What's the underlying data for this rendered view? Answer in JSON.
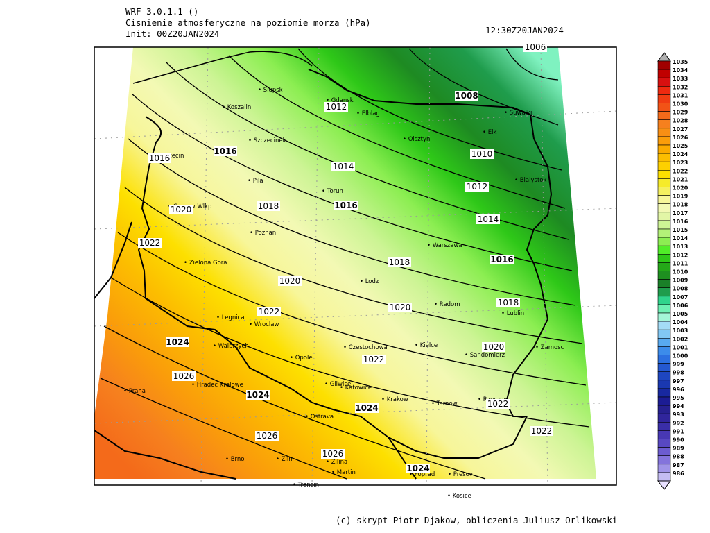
{
  "header": {
    "model": "WRF 3.0.1.1 ()",
    "field": "Cisnienie atmosferyczne na poziomie morza (hPa)",
    "init": "Init: 00Z20JAN2024",
    "valid": "12:30Z20JAN2024"
  },
  "cities": [
    {
      "name": "Slupsk"
    },
    {
      "name": "Gdansk"
    },
    {
      "name": "Koszalin"
    },
    {
      "name": "Elblag"
    },
    {
      "name": "Olsztyn"
    },
    {
      "name": "Suwalki"
    },
    {
      "name": "Elk"
    },
    {
      "name": "Szczecinek"
    },
    {
      "name": "Szczecin"
    },
    {
      "name": "Bialystok"
    },
    {
      "name": "Pila"
    },
    {
      "name": "Torun"
    },
    {
      "name": "Gorzow Wlkp"
    },
    {
      "name": "Poznan"
    },
    {
      "name": "Warszawa"
    },
    {
      "name": "Zielona Gora"
    },
    {
      "name": "Lodz"
    },
    {
      "name": "Radom"
    },
    {
      "name": "Lublin"
    },
    {
      "name": "Legnica"
    },
    {
      "name": "Wroclaw"
    },
    {
      "name": "Walbrzych"
    },
    {
      "name": "Czestochowa"
    },
    {
      "name": "Kielce"
    },
    {
      "name": "Zamosc"
    },
    {
      "name": "Opole"
    },
    {
      "name": "Sandomierz"
    },
    {
      "name": "Hradec Kralowe"
    },
    {
      "name": "Praha"
    },
    {
      "name": "Gliwice"
    },
    {
      "name": "Katowice"
    },
    {
      "name": "Krakow"
    },
    {
      "name": "Tarnow"
    },
    {
      "name": "Rzeszow"
    },
    {
      "name": "Ostrava"
    },
    {
      "name": "Brno"
    },
    {
      "name": "Zlin"
    },
    {
      "name": "Zilina"
    },
    {
      "name": "Martin"
    },
    {
      "name": "Presov"
    },
    {
      "name": "Trencin"
    },
    {
      "name": "Poprad"
    },
    {
      "name": "Kosice"
    }
  ],
  "isobar_labels": [
    {
      "text": "1006",
      "bold": false
    },
    {
      "text": "1008",
      "bold": true
    },
    {
      "text": "1012",
      "bold": false
    },
    {
      "text": "1010",
      "bold": false
    },
    {
      "text": "1016",
      "bold": true
    },
    {
      "text": "1014",
      "bold": false
    },
    {
      "text": "1012",
      "bold": false
    },
    {
      "text": "1016",
      "bold": false
    },
    {
      "text": "1018",
      "bold": false
    },
    {
      "text": "1016",
      "bold": true
    },
    {
      "text": "1020",
      "bold": false
    },
    {
      "text": "1014",
      "bold": false
    },
    {
      "text": "1022",
      "bold": false
    },
    {
      "text": "1018",
      "bold": false
    },
    {
      "text": "1016",
      "bold": true
    },
    {
      "text": "1020",
      "bold": false
    },
    {
      "text": "1020",
      "bold": false
    },
    {
      "text": "1018",
      "bold": false
    },
    {
      "text": "1022",
      "bold": false
    },
    {
      "text": "1024",
      "bold": true
    },
    {
      "text": "1020",
      "bold": false
    },
    {
      "text": "1022",
      "bold": false
    },
    {
      "text": "1026",
      "bold": false
    },
    {
      "text": "1024",
      "bold": true
    },
    {
      "text": "1024",
      "bold": true
    },
    {
      "text": "1022",
      "bold": false
    },
    {
      "text": "1026",
      "bold": false
    },
    {
      "text": "1022",
      "bold": false
    },
    {
      "text": "1026",
      "bold": false
    },
    {
      "text": "1024",
      "bold": true
    }
  ],
  "colorbar": {
    "levels": [
      1035,
      1034,
      1033,
      1032,
      1031,
      1030,
      1029,
      1028,
      1027,
      1026,
      1025,
      1024,
      1023,
      1022,
      1021,
      1020,
      1019,
      1018,
      1017,
      1016,
      1015,
      1014,
      1013,
      1012,
      1011,
      1010,
      1009,
      1008,
      1007,
      1006,
      1005,
      1004,
      1003,
      1002,
      1001,
      1000,
      999,
      998,
      997,
      996,
      995,
      994,
      993,
      992,
      991,
      990,
      989,
      988,
      987,
      986
    ],
    "colors": [
      "#a00000",
      "#c00000",
      "#d81010",
      "#ee2a10",
      "#f03c12",
      "#f25316",
      "#f46a1a",
      "#f6801e",
      "#f88f14",
      "#fa9d0a",
      "#fbab00",
      "#fcbe00",
      "#fdd000",
      "#fde000",
      "#f6eb2a",
      "#f5f060",
      "#f7f69a",
      "#f3f9b4",
      "#e2f6a6",
      "#cdf495",
      "#b3f178",
      "#8cee52",
      "#50ee28",
      "#2ec818",
      "#24a818",
      "#1e9020",
      "#1a8028",
      "#1f9c4c",
      "#30d48c",
      "#6ef0b4",
      "#a4f6d8",
      "#a4dcf6",
      "#82c8f4",
      "#58aaf0",
      "#3c8cea",
      "#2c70e0",
      "#2458d0",
      "#1e46c0",
      "#1a38b0",
      "#1828a0",
      "#1c1c94",
      "#262090",
      "#30259c",
      "#3a2ea8",
      "#4838b4",
      "#5848c2",
      "#6c5cd0",
      "#8474dc",
      "#a094e8",
      "#c4bcf2"
    ]
  },
  "credit": "(c) skrypt Piotr Djakow, obliczenia Juliusz Orlikowski"
}
